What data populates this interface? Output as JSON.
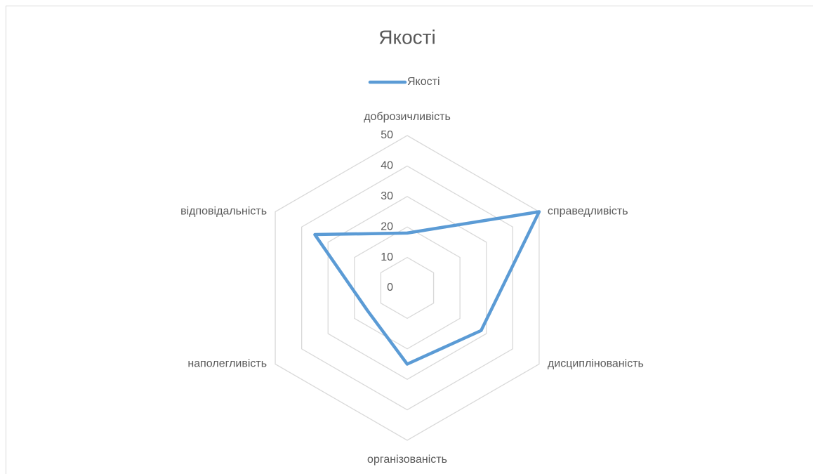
{
  "chart_data": {
    "type": "radar",
    "title": "Якості",
    "categories": [
      "доброзичливість",
      "справедливість",
      "дисциплінованість",
      "організованість",
      "наполегливість",
      "відповідальність"
    ],
    "series": [
      {
        "name": "Якості",
        "color": "#5b9bd5",
        "values": [
          18,
          50,
          28,
          25,
          15,
          35
        ]
      }
    ],
    "ylim": [
      0,
      50
    ],
    "yticks": [
      0,
      10,
      20,
      30,
      40,
      50
    ],
    "grid": true,
    "legend": "top"
  }
}
